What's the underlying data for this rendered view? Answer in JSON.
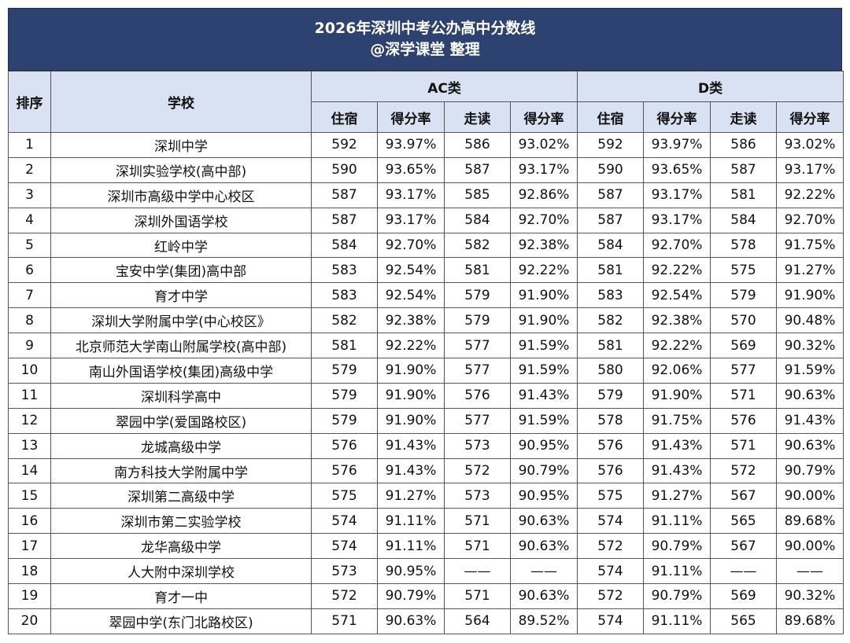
{
  "title": "2026年深圳中考公办高中分数线",
  "subtitle": "@深学课堂 整理",
  "headers": {
    "rank": "排序",
    "school": "学校",
    "group_ac": "AC类",
    "group_d": "D类",
    "ac_board": "住宿",
    "ac_board_rate": "得分率",
    "ac_day": "走读",
    "ac_day_rate": "得分率",
    "d_board": "住宿",
    "d_board_rate": "得分率",
    "d_day": "走读",
    "d_day_rate": "得分率"
  },
  "rows": [
    {
      "rank": "1",
      "school": "深圳中学",
      "ac_board": "592",
      "ac_board_rate": "93.97%",
      "ac_day": "586",
      "ac_day_rate": "93.02%",
      "d_board": "592",
      "d_board_rate": "93.97%",
      "d_day": "586",
      "d_day_rate": "93.02%"
    },
    {
      "rank": "2",
      "school": "深圳实验学校(高中部)",
      "ac_board": "590",
      "ac_board_rate": "93.65%",
      "ac_day": "587",
      "ac_day_rate": "93.17%",
      "d_board": "590",
      "d_board_rate": "93.65%",
      "d_day": "587",
      "d_day_rate": "93.17%"
    },
    {
      "rank": "3",
      "school": "深圳市高级中学中心校区",
      "ac_board": "587",
      "ac_board_rate": "93.17%",
      "ac_day": "585",
      "ac_day_rate": "92.86%",
      "d_board": "587",
      "d_board_rate": "93.17%",
      "d_day": "581",
      "d_day_rate": "92.22%"
    },
    {
      "rank": "4",
      "school": "深圳外国语学校",
      "ac_board": "587",
      "ac_board_rate": "93.17%",
      "ac_day": "584",
      "ac_day_rate": "92.70%",
      "d_board": "587",
      "d_board_rate": "93.17%",
      "d_day": "584",
      "d_day_rate": "92.70%"
    },
    {
      "rank": "5",
      "school": "红岭中学",
      "ac_board": "584",
      "ac_board_rate": "92.70%",
      "ac_day": "582",
      "ac_day_rate": "92.38%",
      "d_board": "584",
      "d_board_rate": "92.70%",
      "d_day": "578",
      "d_day_rate": "91.75%"
    },
    {
      "rank": "6",
      "school": "宝安中学(集团)高中部",
      "ac_board": "583",
      "ac_board_rate": "92.54%",
      "ac_day": "581",
      "ac_day_rate": "92.22%",
      "d_board": "581",
      "d_board_rate": "92.22%",
      "d_day": "575",
      "d_day_rate": "91.27%"
    },
    {
      "rank": "7",
      "school": "育才中学",
      "ac_board": "583",
      "ac_board_rate": "92.54%",
      "ac_day": "579",
      "ac_day_rate": "91.90%",
      "d_board": "583",
      "d_board_rate": "92.54%",
      "d_day": "579",
      "d_day_rate": "91.90%"
    },
    {
      "rank": "8",
      "school": "深圳大学附属中学(中心校区》",
      "ac_board": "582",
      "ac_board_rate": "92.38%",
      "ac_day": "579",
      "ac_day_rate": "91.90%",
      "d_board": "582",
      "d_board_rate": "92.38%",
      "d_day": "570",
      "d_day_rate": "90.48%"
    },
    {
      "rank": "9",
      "school": "北京师范大学南山附属学校(高中部)",
      "ac_board": "581",
      "ac_board_rate": "92.22%",
      "ac_day": "577",
      "ac_day_rate": "91.59%",
      "d_board": "581",
      "d_board_rate": "92.22%",
      "d_day": "569",
      "d_day_rate": "90.32%"
    },
    {
      "rank": "10",
      "school": "南山外国语学校(集团)高级中学",
      "ac_board": "579",
      "ac_board_rate": "91.90%",
      "ac_day": "577",
      "ac_day_rate": "91.59%",
      "d_board": "580",
      "d_board_rate": "92.06%",
      "d_day": "577",
      "d_day_rate": "91.59%"
    },
    {
      "rank": "11",
      "school": "深圳科学高中",
      "ac_board": "579",
      "ac_board_rate": "91.90%",
      "ac_day": "576",
      "ac_day_rate": "91.43%",
      "d_board": "579",
      "d_board_rate": "91.90%",
      "d_day": "571",
      "d_day_rate": "90.63%"
    },
    {
      "rank": "12",
      "school": "翠园中学(爱国路校区)",
      "ac_board": "579",
      "ac_board_rate": "91.90%",
      "ac_day": "577",
      "ac_day_rate": "91.59%",
      "d_board": "578",
      "d_board_rate": "91.75%",
      "d_day": "576",
      "d_day_rate": "91.43%"
    },
    {
      "rank": "13",
      "school": "龙城高级中学",
      "ac_board": "576",
      "ac_board_rate": "91.43%",
      "ac_day": "573",
      "ac_day_rate": "90.95%",
      "d_board": "576",
      "d_board_rate": "91.43%",
      "d_day": "571",
      "d_day_rate": "90.63%"
    },
    {
      "rank": "14",
      "school": "南方科技大学附属中学",
      "ac_board": "576",
      "ac_board_rate": "91.43%",
      "ac_day": "572",
      "ac_day_rate": "90.79%",
      "d_board": "576",
      "d_board_rate": "91.43%",
      "d_day": "572",
      "d_day_rate": "90.79%"
    },
    {
      "rank": "15",
      "school": "深圳第二高级中学",
      "ac_board": "575",
      "ac_board_rate": "91.27%",
      "ac_day": "573",
      "ac_day_rate": "90.95%",
      "d_board": "575",
      "d_board_rate": "91.27%",
      "d_day": "567",
      "d_day_rate": "90.00%"
    },
    {
      "rank": "16",
      "school": "深圳市第二实验学校",
      "ac_board": "574",
      "ac_board_rate": "91.11%",
      "ac_day": "571",
      "ac_day_rate": "90.63%",
      "d_board": "574",
      "d_board_rate": "91.11%",
      "d_day": "565",
      "d_day_rate": "89.68%"
    },
    {
      "rank": "17",
      "school": "龙华高级中学",
      "ac_board": "574",
      "ac_board_rate": "91.11%",
      "ac_day": "571",
      "ac_day_rate": "90.63%",
      "d_board": "572",
      "d_board_rate": "90.79%",
      "d_day": "567",
      "d_day_rate": "90.00%"
    },
    {
      "rank": "18",
      "school": "人大附中深圳学校",
      "ac_board": "573",
      "ac_board_rate": "90.95%",
      "ac_day": "——",
      "ac_day_rate": "——",
      "d_board": "574",
      "d_board_rate": "91.11%",
      "d_day": "——",
      "d_day_rate": "——"
    },
    {
      "rank": "19",
      "school": "育才一中",
      "ac_board": "572",
      "ac_board_rate": "90.79%",
      "ac_day": "571",
      "ac_day_rate": "90.63%",
      "d_board": "572",
      "d_board_rate": "90.79%",
      "d_day": "569",
      "d_day_rate": "90.32%"
    },
    {
      "rank": "20",
      "school": "翠园中学(东门北路校区)",
      "ac_board": "571",
      "ac_board_rate": "90.63%",
      "ac_day": "564",
      "ac_day_rate": "89.52%",
      "d_board": "574",
      "d_board_rate": "91.11%",
      "d_day": "565",
      "d_day_rate": "89.68%"
    }
  ],
  "colors": {
    "title_bg": "#2d4270",
    "header_bg": "#d9e2f2",
    "border": "#555555"
  }
}
